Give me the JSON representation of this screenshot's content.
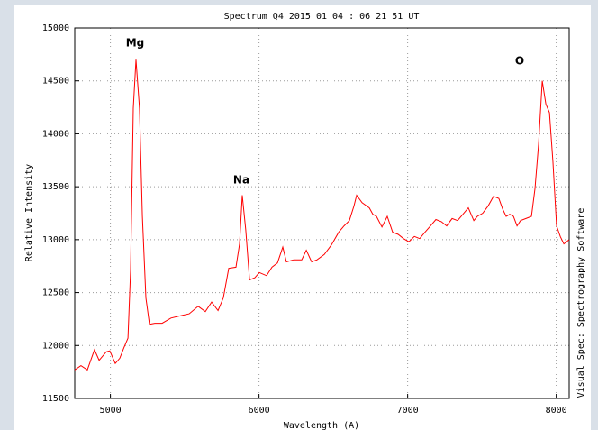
{
  "chart_data": {
    "type": "line",
    "title": "Spectrum Q4 2015 01 04 : 06 21 51 UT",
    "xlabel": "Wavelength (A)",
    "ylabel": "Relative Intensity",
    "side_text": "Visual Spec: Spectrography Software",
    "annotations": [
      "Mg",
      "Na",
      "O"
    ],
    "color": "#ff0000",
    "grid": true,
    "xlim": [
      4760,
      8087
    ],
    "ylim": [
      11500,
      15000
    ],
    "xticks": [
      5000,
      6000,
      7000,
      8000
    ],
    "yticks": [
      11500,
      12000,
      12500,
      13000,
      13500,
      14000,
      14500,
      15000
    ],
    "x": [
      4760,
      4802,
      4845,
      4893,
      4924,
      4972,
      4996,
      5033,
      5063,
      5093,
      5118,
      5136,
      5154,
      5172,
      5196,
      5215,
      5239,
      5263,
      5299,
      5348,
      5408,
      5469,
      5530,
      5590,
      5639,
      5681,
      5724,
      5760,
      5796,
      5845,
      5869,
      5887,
      5911,
      5936,
      5972,
      6002,
      6051,
      6087,
      6124,
      6160,
      6184,
      6233,
      6287,
      6318,
      6354,
      6390,
      6439,
      6487,
      6536,
      6572,
      6608,
      6639,
      6657,
      6693,
      6742,
      6766,
      6790,
      6827,
      6863,
      6899,
      6936,
      6972,
      7008,
      7045,
      7081,
      7117,
      7154,
      7190,
      7227,
      7263,
      7299,
      7336,
      7372,
      7408,
      7445,
      7469,
      7505,
      7542,
      7578,
      7614,
      7639,
      7663,
      7687,
      7712,
      7736,
      7760,
      7796,
      7833,
      7857,
      7881,
      7906,
      7930,
      7954,
      7978,
      8002,
      8027,
      8051,
      8087
    ],
    "values": [
      11770,
      11810,
      11770,
      11960,
      11860,
      11940,
      11950,
      11830,
      11880,
      11985,
      12070,
      12710,
      14240,
      14700,
      14240,
      13220,
      12450,
      12200,
      12210,
      12210,
      12260,
      12280,
      12300,
      12370,
      12320,
      12410,
      12330,
      12450,
      12730,
      12740,
      12960,
      13420,
      13090,
      12620,
      12640,
      12690,
      12660,
      12740,
      12780,
      12930,
      12790,
      12810,
      12810,
      12900,
      12790,
      12810,
      12860,
      12950,
      13070,
      13130,
      13180,
      13320,
      13420,
      13350,
      13300,
      13240,
      13220,
      13120,
      13220,
      13070,
      13050,
      13010,
      12980,
      13030,
      13010,
      13070,
      13130,
      13190,
      13170,
      13130,
      13200,
      13180,
      13240,
      13300,
      13180,
      13220,
      13250,
      13320,
      13410,
      13390,
      13290,
      13220,
      13240,
      13220,
      13130,
      13180,
      13200,
      13220,
      13480,
      13900,
      14500,
      14280,
      14200,
      13730,
      13130,
      13030,
      12960,
      13000
    ]
  }
}
